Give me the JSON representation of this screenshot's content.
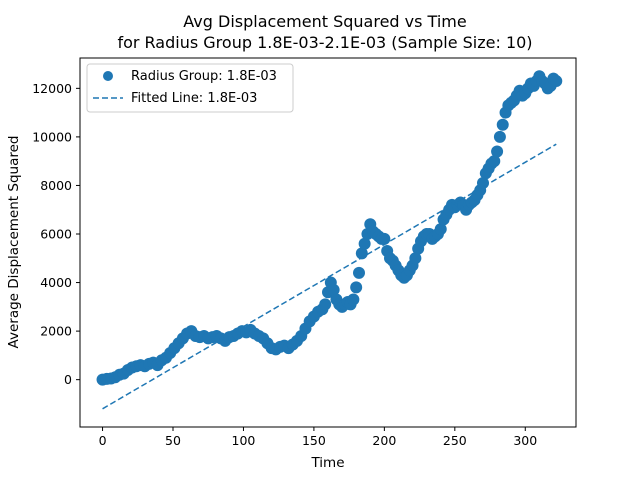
{
  "chart_data": {
    "type": "scatter",
    "title": "Avg Displacement Squared vs Time",
    "subtitle": "for Radius Group 1.8E-03-2.1E-03 (Sample Size: 10)",
    "xlabel": "Time",
    "ylabel": "Average Displacement Squared",
    "xlim": [
      -16,
      336
    ],
    "ylim": [
      -1950,
      13250
    ],
    "xticks": [
      0,
      50,
      100,
      150,
      200,
      250,
      300
    ],
    "yticks": [
      0,
      2000,
      4000,
      6000,
      8000,
      10000,
      12000
    ],
    "grid": false,
    "legend_position": "top-left",
    "colors": {
      "series": "#1f77b4",
      "axes": "#000000",
      "background": "#ffffff"
    },
    "series": [
      {
        "name": "Radius Group: 1.8E-03",
        "kind": "scatter",
        "x": [
          0,
          3,
          6,
          9,
          12,
          15,
          18,
          21,
          24,
          27,
          30,
          33,
          36,
          39,
          42,
          45,
          48,
          51,
          54,
          57,
          60,
          63,
          66,
          69,
          72,
          75,
          78,
          81,
          84,
          87,
          90,
          93,
          96,
          99,
          102,
          105,
          108,
          111,
          114,
          117,
          120,
          123,
          126,
          129,
          132,
          135,
          138,
          141,
          144,
          147,
          150,
          153,
          156,
          158,
          160,
          162,
          164,
          166,
          168,
          170,
          172,
          174,
          176,
          178,
          180,
          182,
          184,
          186,
          188,
          190,
          192,
          194,
          196,
          198,
          200,
          202,
          204,
          206,
          208,
          210,
          212,
          214,
          216,
          218,
          220,
          222,
          224,
          226,
          228,
          230,
          232,
          234,
          236,
          238,
          240,
          242,
          244,
          246,
          248,
          250,
          252,
          254,
          256,
          258,
          260,
          262,
          264,
          266,
          268,
          270,
          272,
          274,
          276,
          278,
          280,
          282,
          284,
          286,
          288,
          290,
          292,
          294,
          296,
          298,
          300,
          302,
          304,
          306,
          308,
          310,
          312,
          314,
          316,
          318,
          320,
          322
        ],
        "y": [
          0,
          30,
          50,
          100,
          200,
          250,
          400,
          500,
          550,
          600,
          550,
          650,
          700,
          600,
          800,
          900,
          1100,
          1300,
          1500,
          1700,
          1900,
          2000,
          1800,
          1750,
          1800,
          1700,
          1750,
          1800,
          1700,
          1600,
          1750,
          1800,
          1900,
          2000,
          1950,
          2050,
          1900,
          1800,
          1700,
          1500,
          1300,
          1250,
          1350,
          1400,
          1300,
          1450,
          1600,
          1800,
          2100,
          2400,
          2600,
          2800,
          2900,
          3100,
          3600,
          4000,
          3700,
          3300,
          3100,
          3000,
          3100,
          3200,
          3100,
          3300,
          3800,
          4400,
          5200,
          5600,
          6000,
          6400,
          6100,
          6000,
          5900,
          5800,
          5800,
          5300,
          5000,
          4900,
          4700,
          4500,
          4300,
          4200,
          4300,
          4500,
          4700,
          5000,
          5400,
          5700,
          5900,
          6000,
          6000,
          5800,
          5900,
          6000,
          6200,
          6600,
          6800,
          7000,
          7200,
          7100,
          7200,
          7300,
          7200,
          7000,
          7200,
          7300,
          7400,
          7600,
          7800,
          8100,
          8500,
          8700,
          8900,
          9000,
          9400,
          10000,
          10500,
          11000,
          11300,
          11400,
          11500,
          11700,
          11900,
          11700,
          11800,
          12000,
          12200,
          12100,
          12300,
          12500,
          12300,
          12200,
          12000,
          12100,
          12400,
          12300
        ]
      },
      {
        "name": "Fitted Line: 1.8E-03",
        "kind": "line",
        "style": "dashed",
        "x": [
          0,
          322
        ],
        "y": [
          -1200,
          9700
        ]
      }
    ]
  }
}
